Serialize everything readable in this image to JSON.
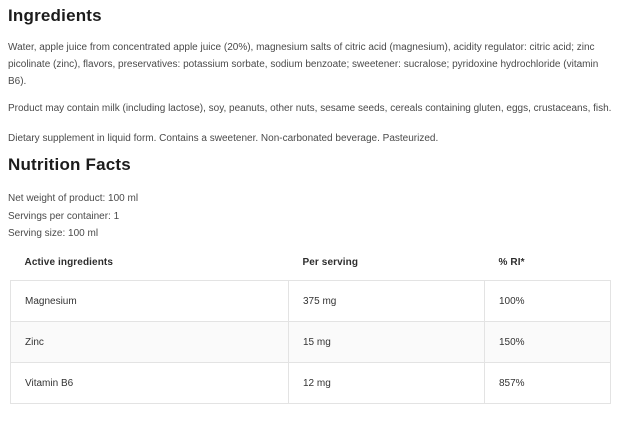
{
  "ingredients": {
    "heading": "Ingredients",
    "composition": "Water, apple juice from concentrated apple juice (20%), magnesium salts of citric acid (magnesium), acidity regulator: citric acid; zinc picolinate (zinc), flavors, preservatives: potassium sorbate, sodium benzoate; sweetener: sucralose; pyridoxine hydrochloride (vitamin B6).",
    "allergen_info": "Product may contain milk (including lactose), soy, peanuts, other nuts, sesame seeds, cereals containing gluten, eggs, crustaceans, fish.",
    "form_note": "Dietary supplement in liquid form. Contains a sweetener. Non-carbonated beverage. Pasteurized."
  },
  "nutrition_facts": {
    "heading": "Nutrition Facts",
    "net_weight": "Net weight of product: 100 ml",
    "servings_per_container": "Servings per container: 1",
    "serving_size": "Serving size: 100 ml",
    "table": {
      "headers": [
        "Active ingredients",
        "Per serving",
        "% RI*"
      ],
      "rows": [
        {
          "name": "Magnesium",
          "per_serving": "375 mg",
          "ri": "100%"
        },
        {
          "name": "Zinc",
          "per_serving": "15 mg",
          "ri": "150%"
        },
        {
          "name": "Vitamin B6",
          "per_serving": "12 mg",
          "ri": "857%"
        }
      ]
    }
  },
  "colors": {
    "heading_text": "#1c1c1c",
    "body_text": "#4a4a4a",
    "table_text": "#333333",
    "table_border": "#e3e3e3",
    "striped_row_background": "#fafafa",
    "page_background": "#ffffff"
  }
}
